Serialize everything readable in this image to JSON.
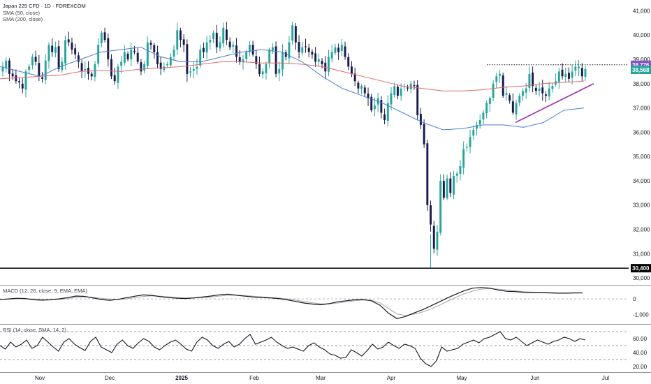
{
  "title": "Japan 225 CFD · 1D · FOREXCOM",
  "indicators": {
    "sma50_label": "SMA (50, close)",
    "sma200_label": "SMA (200, close)",
    "macd_label": "MACD (12, 26, close, 9, EMA, EMA)",
    "rsi_label": "RSI (14, close, SMA, 14, 2)"
  },
  "price_tags": {
    "resistance": "38,776",
    "last": "38,568",
    "support_line": "30,400"
  },
  "colors": {
    "up": "#26a69a",
    "down": "#1a1a4e",
    "sma50": "#4a7fd4",
    "sma200": "#e36b6b",
    "trendline": "#9c27b0",
    "resistance_tag": "#7e57c2",
    "last_tag": "#26a69a",
    "support_tag": "#000000"
  },
  "chart_data": [
    {
      "type": "candlestick",
      "title": "Japan 225 CFD · 1D · FOREXCOM",
      "x_ticks": [
        "Nov",
        "Dec",
        "2025",
        "Feb",
        "Mar",
        "Apr",
        "May",
        "Jun",
        "Jul"
      ],
      "y_ticks": [
        "41,000",
        "40,000",
        "39,000",
        "38,000",
        "37,000",
        "36,000",
        "35,000",
        "34,000",
        "33,000",
        "32,000",
        "31,000",
        "30,000"
      ],
      "ylim": [
        29800,
        41300
      ],
      "series": [
        {
          "name": "Price",
          "closes": [
            38700,
            38950,
            38400,
            38300,
            38100,
            38050,
            37800,
            38500,
            38700,
            39100,
            38900,
            38300,
            38200,
            38950,
            39600,
            39300,
            39500,
            38600,
            38900,
            39800,
            39700,
            39400,
            39200,
            38900,
            38500,
            38600,
            38400,
            38300,
            38800,
            39600,
            40100,
            39800,
            39000,
            38300,
            38100,
            38700,
            38900,
            39300,
            39000,
            39400,
            39300,
            38900,
            38500,
            38800,
            39700,
            39600,
            39300,
            38800,
            38600,
            38700,
            38800,
            39100,
            39400,
            40200,
            39800,
            39600,
            38400,
            38500,
            38600,
            38700,
            39400,
            39300,
            39700,
            39800,
            40100,
            39500,
            39700,
            40300,
            39800,
            39500,
            39600,
            39100,
            38900,
            39000,
            39300,
            39600,
            39200,
            38800,
            38400,
            38500,
            38800,
            39400,
            39500,
            38400,
            38600,
            39300,
            39100,
            39700,
            40400,
            39700,
            39300,
            39500,
            39500,
            39300,
            39200,
            38900,
            39000,
            38800,
            38500,
            39100,
            39300,
            39500,
            39300,
            39600,
            39100,
            38700,
            38400,
            38100,
            37800,
            37900,
            37600,
            37400,
            36900,
            37100,
            37400,
            36800,
            36500,
            37200,
            37600,
            37900,
            37500,
            37800,
            37900,
            37800,
            38000,
            37900,
            36700,
            36300,
            35500,
            33000,
            32200,
            31200,
            31900,
            34000,
            33300,
            34100,
            33500,
            34200,
            34300,
            34600,
            35300,
            35400,
            35800,
            36100,
            36300,
            36500,
            36800,
            37200,
            37400,
            38000,
            38300,
            38400,
            37500,
            37600,
            37300,
            36800,
            37200,
            37500,
            37700,
            37800,
            38400,
            37900,
            37700,
            37800,
            37600,
            37500,
            37800,
            37900,
            38100,
            38500,
            38300,
            38400,
            38200,
            38500,
            38700,
            38700,
            38300,
            38600
          ]
        },
        {
          "name": "SMA (50, close)",
          "values": [
            38700,
            38500,
            38300,
            38700,
            39000,
            39300,
            39400,
            39500,
            39100,
            38900,
            38900,
            39100,
            39300,
            39400,
            39300,
            38900,
            38300,
            37800,
            37500,
            37200,
            36800,
            36400,
            36100,
            36150,
            36300,
            36300,
            36200,
            36400,
            36900,
            37000
          ]
        },
        {
          "name": "SMA (200, close)",
          "values": [
            38200,
            38250,
            38300,
            38350,
            38500,
            38550,
            38500,
            38600,
            38650,
            38700,
            38800,
            38900,
            38900,
            38850,
            38850,
            38800,
            38700,
            38500,
            38300,
            38100,
            37900,
            37800,
            37700,
            37700,
            37750,
            37850,
            37900,
            38000,
            38050,
            38100
          ]
        }
      ],
      "resistance": 38776,
      "last": 38568,
      "support": 30400,
      "trendline": [
        {
          "x": "2025-05-21",
          "y": 36400
        },
        {
          "x": "2025-06-24",
          "y": 38000
        }
      ]
    },
    {
      "type": "line",
      "title": "MACD (12, 26, close, 9, EMA, EMA)",
      "y_ticks": [
        "0",
        "-1,000"
      ],
      "ylim": [
        -1500,
        800
      ],
      "series": [
        {
          "name": "MACD",
          "values": [
            -50,
            0,
            40,
            20,
            -60,
            -80,
            -60,
            0,
            80,
            180,
            160,
            60,
            -40,
            -90,
            -30,
            80,
            170,
            250,
            220,
            140,
            80,
            40,
            20,
            60,
            120,
            180,
            260,
            300,
            230,
            170,
            120,
            80,
            60,
            20,
            -60,
            -160,
            -260,
            -330,
            -370,
            -300,
            -180,
            -120,
            -60,
            -40,
            -120,
            -400,
            -900,
            -1250,
            -1120,
            -900,
            -700,
            -450,
            -200,
            60,
            300,
            520,
            680,
            720,
            680,
            560,
            480,
            460,
            420,
            400,
            400,
            380,
            360,
            360,
            380,
            380
          ]
        },
        {
          "name": "Signal",
          "values": [
            -30,
            -20,
            0,
            10,
            -10,
            -40,
            -50,
            -30,
            20,
            100,
            130,
            100,
            40,
            -20,
            -30,
            10,
            80,
            160,
            190,
            170,
            130,
            90,
            60,
            60,
            80,
            120,
            180,
            230,
            240,
            210,
            170,
            130,
            90,
            50,
            0,
            -80,
            -170,
            -250,
            -320,
            -320,
            -260,
            -190,
            -120,
            -70,
            -90,
            -250,
            -600,
            -950,
            -1050,
            -970,
            -840,
            -650,
            -420,
            -150,
            100,
            330,
            500,
            620,
            660,
            620,
            560,
            510,
            460,
            430,
            410,
            400,
            380,
            370,
            370,
            380
          ]
        }
      ]
    },
    {
      "type": "line",
      "title": "RSI (14, close, SMA, 14, 2)",
      "y_ticks": [
        "60.00",
        "40.00",
        "20.00"
      ],
      "ylim": [
        15,
        78
      ],
      "bands": [
        70,
        50,
        30
      ],
      "series": [
        {
          "name": "RSI",
          "values": [
            50,
            45,
            55,
            48,
            52,
            58,
            46,
            50,
            62,
            55,
            48,
            42,
            55,
            60,
            52,
            47,
            43,
            56,
            62,
            48,
            44,
            40,
            52,
            58,
            50,
            46,
            54,
            60,
            56,
            48,
            44,
            50,
            55,
            58,
            52,
            45,
            42,
            55,
            62,
            58,
            50,
            46,
            52,
            56,
            48,
            52,
            60,
            66,
            52,
            55,
            58,
            62,
            55,
            50,
            46,
            48,
            45,
            42,
            50,
            54,
            48,
            44,
            38,
            36,
            32,
            33,
            44,
            40,
            35,
            43,
            52,
            45,
            48,
            55,
            50,
            46,
            52,
            50,
            46,
            32,
            24,
            20,
            28,
            48,
            42,
            44,
            46,
            52,
            55,
            58,
            54,
            60,
            62,
            66,
            70,
            60,
            58,
            62,
            56,
            50,
            54,
            58,
            55,
            52,
            56,
            58,
            62,
            60,
            56,
            60,
            58
          ]
        }
      ]
    }
  ]
}
